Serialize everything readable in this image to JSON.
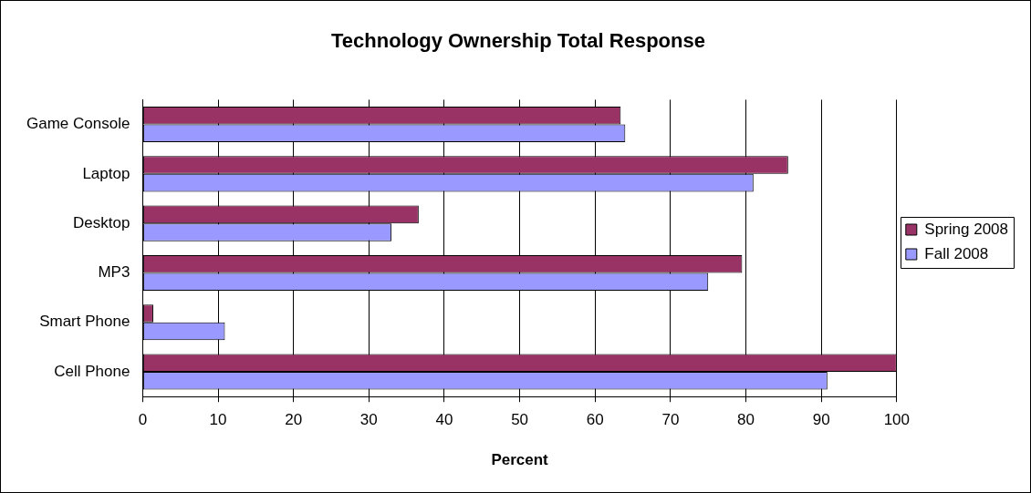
{
  "chart_data": {
    "type": "bar",
    "orientation": "horizontal",
    "title": "Technology Ownership Total Response",
    "xlabel": "Percent",
    "categories": [
      "Game Console",
      "Laptop",
      "Desktop",
      "MP3",
      "Smart Phone",
      "Cell Phone"
    ],
    "series": [
      {
        "name": "Spring 2008",
        "color": "#993366",
        "values": [
          63.4,
          85.6,
          36.6,
          79.5,
          1.4,
          100
        ]
      },
      {
        "name": "Fall 2008",
        "color": "#9999ff",
        "values": [
          64.0,
          81.0,
          33.0,
          75.0,
          10.9,
          90.8
        ]
      }
    ],
    "xlim": [
      0,
      100
    ],
    "xticks": [
      0,
      10,
      20,
      30,
      40,
      50,
      60,
      70,
      80,
      90,
      100
    ],
    "grid": "x",
    "legend": "right"
  }
}
